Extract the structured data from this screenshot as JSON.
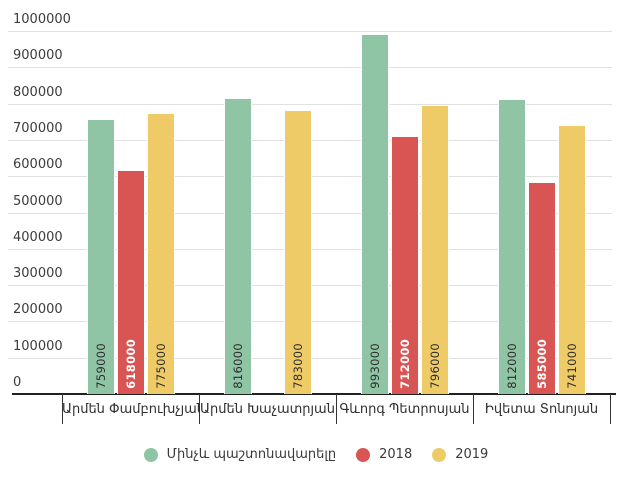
{
  "chart_data": {
    "type": "bar",
    "title": "",
    "categories": [
      "Արմեն Փամբուխչյան",
      "Արմեն Խաչատրյան",
      "Գևորգ Պետրոսյան",
      "Իվետա Տոնոյան"
    ],
    "series": [
      {
        "name": "Մինչև պաշտոնավարելը",
        "color": "#8fc4a4",
        "label_color": "#2d2d2d",
        "label_bold": false,
        "values": [
          759000,
          816000,
          993000,
          812000
        ]
      },
      {
        "name": "2018",
        "color": "#d95554",
        "label_color": "#ffffff",
        "label_bold": true,
        "values": [
          618000,
          null,
          712000,
          585000
        ]
      },
      {
        "name": "2019",
        "color": "#efcb68",
        "label_color": "#2d2d2d",
        "label_bold": false,
        "values": [
          775000,
          783000,
          796000,
          741000
        ]
      }
    ],
    "bar_value_labels": [
      "759000",
      "618000",
      "775000",
      "816000",
      "783000",
      "993000",
      "712000",
      "796000",
      "812000",
      "585000",
      "741000"
    ],
    "ylim": [
      0,
      1000000
    ],
    "yticks": [
      0,
      100000,
      200000,
      300000,
      400000,
      500000,
      600000,
      700000,
      800000,
      900000,
      1000000
    ],
    "grid": true,
    "legend_position": "bottom"
  },
  "colors": {
    "background": "#ffffff",
    "gridline": "#e1e1e1",
    "axis_line": "#212121",
    "tick_text": "#3c3c3c",
    "category_text": "#2f2f2f"
  }
}
